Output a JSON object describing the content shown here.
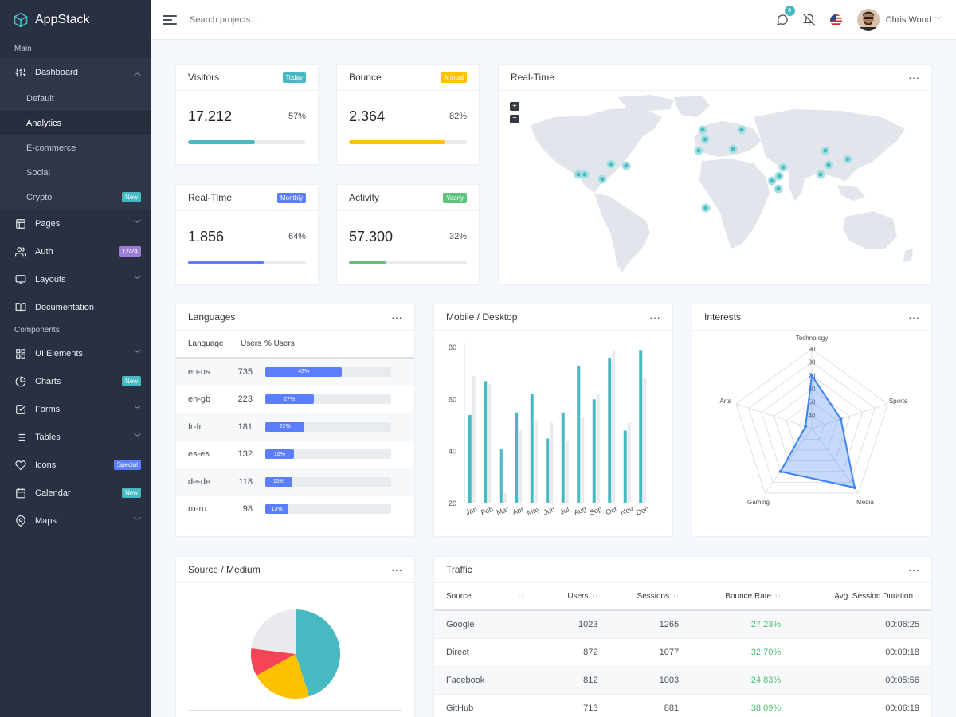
{
  "app": {
    "name": "AppStack"
  },
  "sidebar": {
    "sections": [
      "Main",
      "Components"
    ],
    "items": [
      {
        "label": "Dashboard",
        "icon": "sliders-icon",
        "chevron": "up"
      },
      {
        "label": "Pages",
        "icon": "layout-icon",
        "chevron": "down"
      },
      {
        "label": "Auth",
        "icon": "users-icon",
        "badge": "12/24",
        "badge_color": "#9d7bd8"
      },
      {
        "label": "Layouts",
        "icon": "monitor-icon",
        "chevron": "down"
      },
      {
        "label": "Documentation",
        "icon": "book-icon"
      },
      {
        "label": "UI Elements",
        "icon": "grid-icon",
        "chevron": "down"
      },
      {
        "label": "Charts",
        "icon": "pie-chart-icon",
        "badge": "New",
        "badge_color": "#47bac1"
      },
      {
        "label": "Forms",
        "icon": "check-square-icon",
        "chevron": "down"
      },
      {
        "label": "Tables",
        "icon": "list-icon",
        "chevron": "down"
      },
      {
        "label": "Icons",
        "icon": "heart-icon",
        "badge": "Special",
        "badge_color": "#5b7dff"
      },
      {
        "label": "Calendar",
        "icon": "calendar-icon",
        "badge": "New",
        "badge_color": "#47bac1"
      },
      {
        "label": "Maps",
        "icon": "map-pin-icon",
        "chevron": "down"
      }
    ],
    "dashboard_sub": [
      {
        "label": "Default"
      },
      {
        "label": "Analytics",
        "active": true
      },
      {
        "label": "E-commerce"
      },
      {
        "label": "Social"
      },
      {
        "label": "Crypto",
        "badge": "New"
      }
    ]
  },
  "topbar": {
    "search_placeholder": "Search projects...",
    "notification_count": "4",
    "user_name": "Chris Wood"
  },
  "stats": [
    {
      "title": "Visitors",
      "badge": "Today",
      "badge_color": "#47bac1",
      "value": "17.212",
      "percent": "57%",
      "progress": 57,
      "bar_color": "#47bac1"
    },
    {
      "title": "Bounce",
      "badge": "Annual",
      "badge_color": "#fcc100",
      "value": "2.364",
      "percent": "82%",
      "progress": 82,
      "bar_color": "#fcc100"
    },
    {
      "title": "Real-Time",
      "badge": "Monthly",
      "badge_color": "#5b7dff",
      "value": "1.856",
      "percent": "64%",
      "progress": 64,
      "bar_color": "#5b7dff"
    },
    {
      "title": "Activity",
      "badge": "Yearly",
      "badge_color": "#5fc27e",
      "value": "57.300",
      "percent": "32%",
      "progress": 32,
      "bar_color": "#5fc27e"
    }
  ],
  "realtime_map": {
    "title": "Real-Time",
    "zoom_in": "+",
    "zoom_out": "−"
  },
  "languages": {
    "title": "Languages",
    "headers": [
      "Language",
      "Users",
      "% Users"
    ],
    "rows": [
      {
        "language": "en-us",
        "users": "735",
        "pct": "43%",
        "value": 43
      },
      {
        "language": "en-gb",
        "users": "223",
        "pct": "27%",
        "value": 27
      },
      {
        "language": "fr-fr",
        "users": "181",
        "pct": "22%",
        "value": 22
      },
      {
        "language": "es-es",
        "users": "132",
        "pct": "16%",
        "value": 16
      },
      {
        "language": "de-de",
        "users": "118",
        "pct": "15%",
        "value": 15
      },
      {
        "language": "ru-ru",
        "users": "98",
        "pct": "13%",
        "value": 13
      }
    ]
  },
  "mobile_desktop": {
    "title": "Mobile / Desktop"
  },
  "interests": {
    "title": "Interests"
  },
  "source_medium": {
    "title": "Source / Medium"
  },
  "traffic": {
    "title": "Traffic",
    "headers": [
      "Source",
      "Users",
      "Sessions",
      "Bounce Rate",
      "Avg. Session Duration"
    ],
    "rows": [
      {
        "source": "Google",
        "users": "1023",
        "sessions": "1265",
        "bounce": "27.23%",
        "duration": "00:06:25"
      },
      {
        "source": "Direct",
        "users": "872",
        "sessions": "1077",
        "bounce": "32.70%",
        "duration": "00:09:18"
      },
      {
        "source": "Facebook",
        "users": "812",
        "sessions": "1003",
        "bounce": "24.83%",
        "duration": "00:05:56"
      },
      {
        "source": "GitHub",
        "users": "713",
        "sessions": "881",
        "bounce": "38.09%",
        "duration": "00:06:19"
      }
    ]
  },
  "chart_data": [
    {
      "type": "bar",
      "categories": [
        "Jan",
        "Feb",
        "Mar",
        "Apr",
        "May",
        "Jun",
        "Jul",
        "Aug",
        "Sep",
        "Oct",
        "Nov",
        "Dec"
      ],
      "series": [
        {
          "values": [
            54,
            67,
            41,
            55,
            62,
            45,
            55,
            73,
            60,
            76,
            48,
            79
          ],
          "color": "#47bac1"
        },
        {
          "values": [
            69,
            66,
            24,
            48,
            52,
            51,
            44,
            53,
            62,
            79,
            51,
            68
          ],
          "color": "#e8eaed"
        }
      ],
      "ylim": [
        20,
        80
      ],
      "yticks": [
        20,
        40,
        60,
        80
      ]
    },
    {
      "type": "radar",
      "axes": [
        "Technology",
        "Sports",
        "Media",
        "Gaming",
        "Arts"
      ],
      "ticks": [
        40,
        50,
        60,
        70,
        80,
        90
      ],
      "range": [
        30,
        90
      ],
      "values": [
        70,
        53,
        85,
        70,
        35
      ],
      "color": "#3b82f6"
    },
    {
      "type": "pie",
      "slices": [
        {
          "value": 45,
          "color": "#47bac1"
        },
        {
          "value": 22,
          "color": "#fcc100"
        },
        {
          "value": 10,
          "color": "#f44455"
        },
        {
          "value": 23,
          "color": "#e8eaed"
        }
      ]
    }
  ]
}
